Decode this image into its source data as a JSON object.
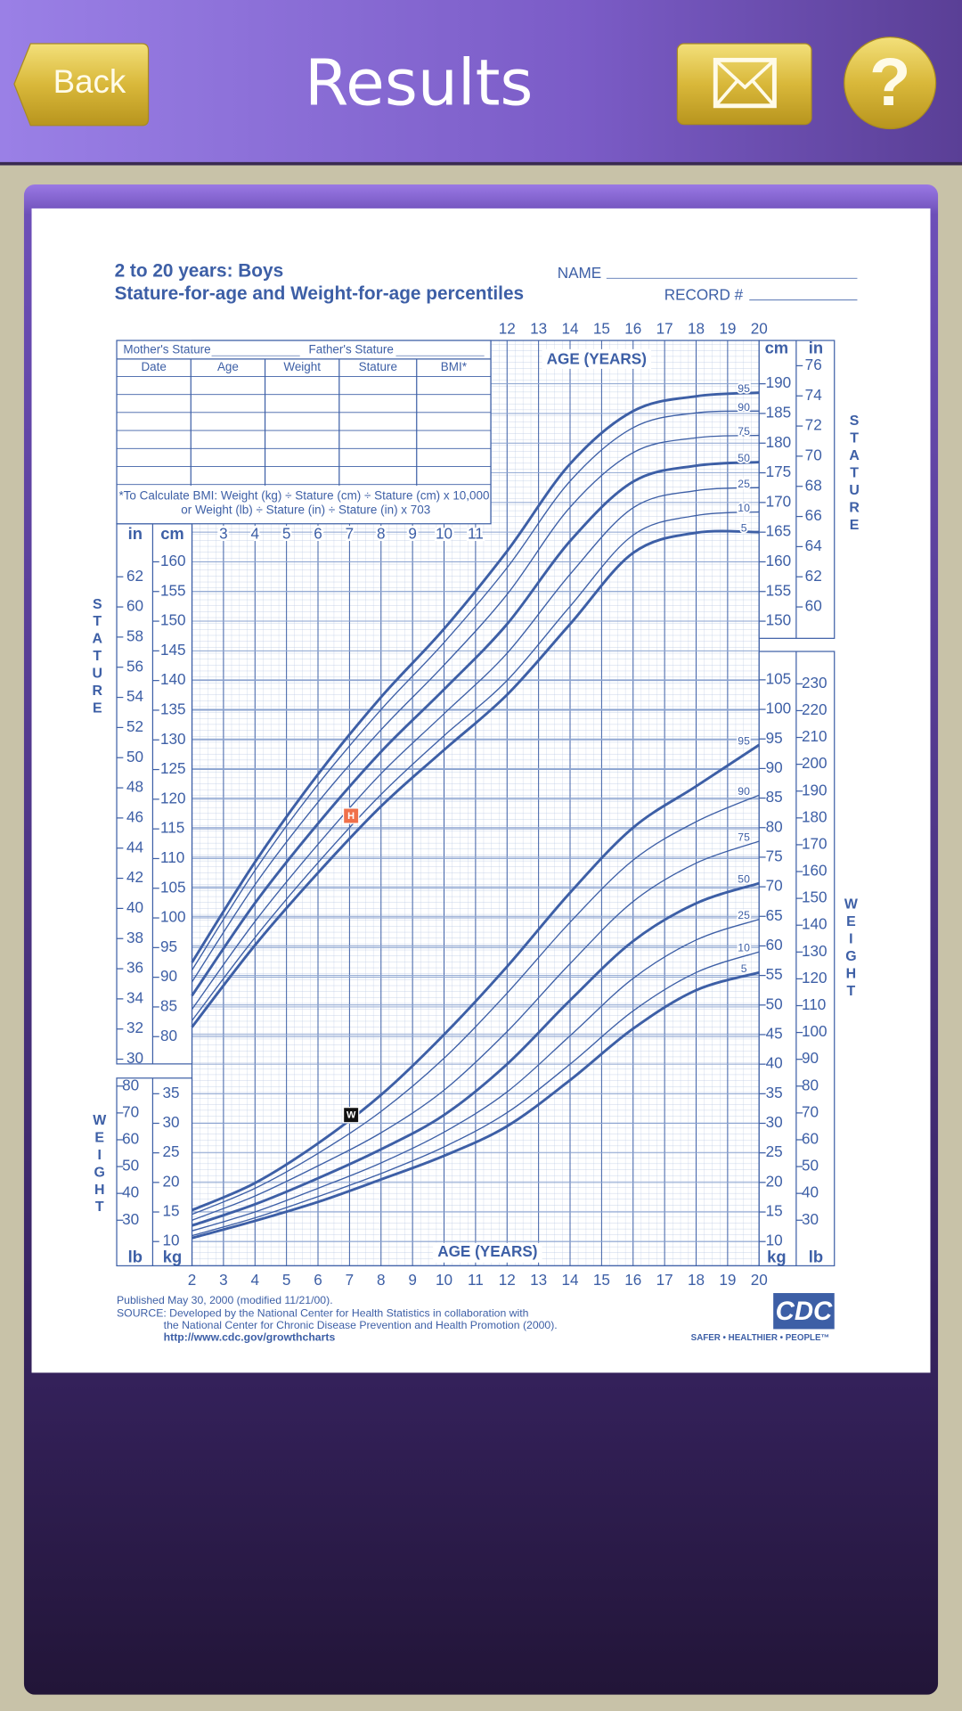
{
  "header": {
    "back": "Back",
    "title": "Results",
    "help": "?"
  },
  "chart": {
    "title": "2 to 20 years: Boys",
    "subtitle": "Stature-for-age and Weight-for-age percentiles",
    "name_label": "NAME",
    "record_label": "RECORD #",
    "table": {
      "mother": "Mother's Stature",
      "father": "Father's Stature",
      "columns": [
        "Date",
        "Age",
        "Weight",
        "Stature",
        "BMI*"
      ]
    },
    "bmi_note": [
      "*To Calculate BMI: Weight (kg) ÷ Stature (cm) ÷ Stature (cm) x 10,000",
      "or Weight (lb) ÷ Stature (in) ÷ Stature (in) x 703"
    ],
    "age_label": "AGE (YEARS)",
    "stature_label": "STATURE",
    "weight_label": "WEIGHT",
    "units": {
      "cm": "cm",
      "in": "in",
      "kg": "kg",
      "lb": "lb"
    },
    "xlim": [
      2,
      20
    ],
    "age_ticks_top": [
      12,
      13,
      14,
      15,
      16,
      17,
      18,
      19,
      20
    ],
    "age_ticks_inner": [
      3,
      4,
      5,
      6,
      7,
      8,
      9,
      10,
      11
    ],
    "age_ticks_bottom": [
      2,
      3,
      4,
      5,
      6,
      7,
      8,
      9,
      10,
      11,
      12,
      13,
      14,
      15,
      16,
      17,
      18,
      19,
      20
    ],
    "stature_ylim": [
      75.4,
      197.3
    ],
    "weight_ylim": [
      5.9,
      109.8
    ],
    "cm_ticks_left": [
      80,
      85,
      90,
      95,
      100,
      105,
      110,
      115,
      120,
      125,
      130,
      135,
      140,
      145,
      150,
      155,
      160
    ],
    "cm_ticks_right": [
      150,
      155,
      160,
      165,
      170,
      175,
      180,
      185,
      190
    ],
    "in_ticks_left": [
      30,
      32,
      34,
      36,
      38,
      40,
      42,
      44,
      46,
      48,
      50,
      52,
      54,
      56,
      58,
      60,
      62
    ],
    "in_ticks_right": [
      60,
      62,
      64,
      66,
      68,
      70,
      72,
      74,
      76
    ],
    "kg_ticks_left": [
      10,
      15,
      20,
      25,
      30,
      35
    ],
    "kg_ticks_right": [
      10,
      15,
      20,
      25,
      30,
      35,
      40,
      45,
      50,
      55,
      60,
      65,
      70,
      75,
      80,
      85,
      90,
      95,
      100,
      105
    ],
    "lb_ticks_left": [
      30,
      40,
      50,
      60,
      70,
      80
    ],
    "lb_ticks_right": [
      30,
      40,
      50,
      60,
      70,
      80,
      90,
      100,
      110,
      120,
      130,
      140,
      150,
      160,
      170,
      180,
      190,
      200,
      210,
      220,
      230
    ],
    "ages": [
      2,
      4,
      6,
      8,
      10,
      12,
      14,
      16,
      18,
      20
    ],
    "color": "#3d5fa6",
    "stature_series": [
      {
        "name": "95",
        "bold": true,
        "values": [
          92.5,
          109.4,
          124.2,
          137.2,
          148.7,
          161.8,
          176.5,
          185.4,
          187.9,
          188.5
        ]
      },
      {
        "name": "90",
        "bold": false,
        "values": [
          91.2,
          108,
          122.5,
          135.1,
          146.4,
          159,
          173.6,
          182.6,
          185.1,
          185.4
        ]
      },
      {
        "name": "75",
        "bold": false,
        "values": [
          89.2,
          105.6,
          119.5,
          131.7,
          142.6,
          154.5,
          169.2,
          178.4,
          180.9,
          181.3
        ]
      },
      {
        "name": "50",
        "bold": true,
        "values": [
          86.9,
          102.5,
          115.9,
          128,
          138.5,
          149.5,
          163.5,
          173.5,
          176.2,
          176.8
        ]
      },
      {
        "name": "25",
        "bold": false,
        "values": [
          84.6,
          99.4,
          112.4,
          124.3,
          134.4,
          144.6,
          157.9,
          169.1,
          172,
          172.5
        ]
      },
      {
        "name": "10",
        "bold": false,
        "values": [
          82.7,
          96.7,
          109.3,
          120.8,
          130.7,
          140,
          152.5,
          164.5,
          167.8,
          168.4
        ]
      },
      {
        "name": "5",
        "bold": true,
        "values": [
          81.6,
          95.4,
          107.6,
          118.8,
          128.3,
          137.6,
          149.5,
          161.5,
          164.9,
          165
        ]
      }
    ],
    "weight_series": [
      {
        "name": "95",
        "bold": true,
        "values": [
          15.3,
          19.9,
          26.6,
          34.8,
          45,
          56.5,
          69,
          80,
          87,
          94
        ]
      },
      {
        "name": "90",
        "bold": false,
        "values": [
          14.6,
          19,
          24.9,
          32,
          41,
          52,
          64,
          74.5,
          81,
          85.5
        ]
      },
      {
        "name": "75",
        "bold": false,
        "values": [
          13.6,
          17.7,
          22.8,
          28.4,
          35.6,
          45.5,
          57,
          67.5,
          74,
          77.7
        ]
      },
      {
        "name": "50",
        "bold": true,
        "values": [
          12.7,
          16.3,
          20.7,
          25.6,
          31.4,
          40,
          50.8,
          60.8,
          67.2,
          70.6
        ]
      },
      {
        "name": "25",
        "bold": false,
        "values": [
          11.8,
          15,
          19,
          23.3,
          28.5,
          35.3,
          44.8,
          54.5,
          61,
          64.5
        ]
      },
      {
        "name": "10",
        "bold": false,
        "values": [
          11,
          14,
          17.6,
          21.5,
          26,
          31.8,
          40,
          49,
          55.5,
          59
        ]
      },
      {
        "name": "5",
        "bold": true,
        "values": [
          10.6,
          13.5,
          16.7,
          20.5,
          24.5,
          29.5,
          37.3,
          46,
          52.5,
          55.5
        ]
      }
    ],
    "markers": [
      {
        "label": "H",
        "axis": "stature",
        "age": 7.05,
        "value": 117.2,
        "color": "#f0704a"
      },
      {
        "label": "W",
        "axis": "weight",
        "age": 7.05,
        "value": 31.4,
        "color": "#111111"
      }
    ],
    "footer": {
      "published": "Published May 30, 2000 (modified 11/21/00).",
      "source1": "SOURCE: Developed by the National Center for Health Statistics in collaboration with",
      "source2": "the National Center for Chronic Disease Prevention and Health Promotion (2000).",
      "url": "http://www.cdc.gov/growthcharts",
      "logo": "CDC",
      "motto": "SAFER • HEALTHIER • PEOPLE™"
    }
  }
}
